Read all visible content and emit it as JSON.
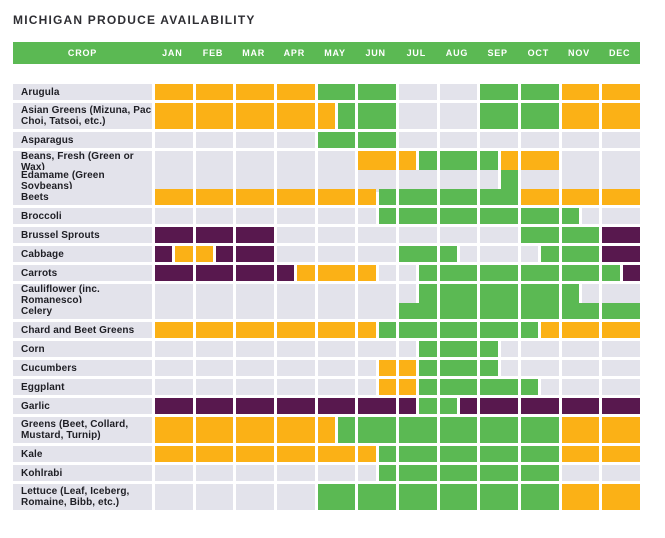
{
  "title": "MICHIGAN PRODUCE AVAILABILITY",
  "header": {
    "crop_label": "CROP"
  },
  "months": [
    "JAN",
    "FEB",
    "MAR",
    "APR",
    "MAY",
    "JUN",
    "JUL",
    "AUG",
    "SEP",
    "OCT",
    "NOV",
    "DEC"
  ],
  "colors": {
    "green": "#5bb953",
    "orange": "#fbb116",
    "purple": "#58184e",
    "none": "#e3e3eb",
    "header_bg": "#5bb953",
    "header_text": "#ffffff",
    "title_text": "#2e2e33",
    "label_bg": "#e3e3eb",
    "label_text": "#1e1e24"
  },
  "cell_codes": {
    "G": "green",
    "O": "orange",
    "P": "purple",
    "-": "none"
  },
  "chart_data": {
    "type": "heatmap",
    "title": "MICHIGAN PRODUCE AVAILABILITY",
    "x_categories": [
      "JAN",
      "FEB",
      "MAR",
      "APR",
      "MAY",
      "JUN",
      "JUL",
      "AUG",
      "SEP",
      "OCT",
      "NOV",
      "DEC"
    ],
    "value_codes": "G=green cell, O=orange cell, P=purple cell, -=empty gray cell, X/Y=month cell split into left/right halves",
    "legend": "none shown in image",
    "rows": [
      {
        "crop": "Arugula",
        "tall": false,
        "months": [
          "O",
          "O",
          "O",
          "O",
          "G",
          "G",
          "-",
          "-",
          "G",
          "G",
          "O",
          "O"
        ]
      },
      {
        "crop": "Asian Greens (Mizuna, Pac Choi, Tatsoi, etc.)",
        "tall": true,
        "months": [
          "O",
          "O",
          "O",
          "O",
          "O/G",
          "G",
          "-",
          "-",
          "G",
          "G",
          "O",
          "O"
        ]
      },
      {
        "crop": "Asparagus",
        "tall": false,
        "months": [
          "-",
          "-",
          "-",
          "-",
          "G",
          "G",
          "-",
          "-",
          "-",
          "-",
          "-",
          "-"
        ]
      },
      {
        "crop": "Beans, Fresh (Green or Wax)",
        "tall": false,
        "months": [
          "-",
          "-",
          "-",
          "-",
          "-",
          "O",
          "O/G",
          "G",
          "G/O",
          "O",
          "-",
          "-"
        ]
      },
      {
        "crop": "Edamame (Green Soybeans)",
        "tall": false,
        "months": [
          "-",
          "-",
          "-",
          "-",
          "-",
          "-",
          "-",
          "-",
          "-/G",
          "-",
          "-",
          "-"
        ]
      },
      {
        "crop": "Beets",
        "tall": false,
        "months": [
          "O",
          "O",
          "O",
          "O",
          "O",
          "O/G",
          "G",
          "G",
          "G",
          "O",
          "O",
          "O"
        ]
      },
      {
        "crop": "Broccoli",
        "tall": false,
        "months": [
          "-",
          "-",
          "-",
          "-",
          "-",
          "-/G",
          "G",
          "G",
          "G",
          "G",
          "G/-",
          "-"
        ]
      },
      {
        "crop": "Brussel Sprouts",
        "tall": false,
        "months": [
          "P",
          "P",
          "P",
          "-",
          "-",
          "-",
          "-",
          "-",
          "-",
          "G",
          "G",
          "P"
        ]
      },
      {
        "crop": "Cabbage",
        "tall": false,
        "months": [
          "P/O",
          "O/P",
          "P",
          "-",
          "-",
          "-",
          "G",
          "G/-",
          "-",
          "-/G",
          "G",
          "P"
        ]
      },
      {
        "crop": "Carrots",
        "tall": false,
        "months": [
          "P",
          "P",
          "P",
          "P/O",
          "O",
          "O/-",
          "-/G",
          "G",
          "G",
          "G",
          "G",
          "G/P"
        ]
      },
      {
        "crop": "Cauliflower (inc. Romanesco)",
        "tall": false,
        "months": [
          "-",
          "-",
          "-",
          "-",
          "-",
          "-",
          "-/G",
          "G",
          "G",
          "G",
          "G/-",
          "-"
        ]
      },
      {
        "crop": "Celery",
        "tall": false,
        "months": [
          "-",
          "-",
          "-",
          "-",
          "-",
          "-",
          "G",
          "G",
          "G",
          "G",
          "G",
          "G"
        ]
      },
      {
        "crop": "Chard and Beet Greens",
        "tall": false,
        "months": [
          "O",
          "O",
          "O",
          "O",
          "O",
          "O/G",
          "G",
          "G",
          "G",
          "G/O",
          "O",
          "O"
        ]
      },
      {
        "crop": "Corn",
        "tall": false,
        "months": [
          "-",
          "-",
          "-",
          "-",
          "-",
          "-",
          "-/G",
          "G",
          "G/-",
          "-",
          "-",
          "-"
        ]
      },
      {
        "crop": "Cucumbers",
        "tall": false,
        "months": [
          "-",
          "-",
          "-",
          "-",
          "-",
          "-/O",
          "O/G",
          "G",
          "G/-",
          "-",
          "-",
          "-"
        ]
      },
      {
        "crop": "Eggplant",
        "tall": false,
        "months": [
          "-",
          "-",
          "-",
          "-",
          "-",
          "-/O",
          "O/G",
          "G",
          "G",
          "G/-",
          "-",
          "-"
        ]
      },
      {
        "crop": "Garlic",
        "tall": false,
        "months": [
          "P",
          "P",
          "P",
          "P",
          "P",
          "P",
          "P/G",
          "G/P",
          "P",
          "P",
          "P",
          "P"
        ]
      },
      {
        "crop": "Greens (Beet, Collard, Mustard, Turnip)",
        "tall": true,
        "months": [
          "O",
          "O",
          "O",
          "O",
          "O/G",
          "G",
          "G",
          "G",
          "G",
          "G",
          "O",
          "O"
        ]
      },
      {
        "crop": "Kale",
        "tall": false,
        "months": [
          "O",
          "O",
          "O",
          "O",
          "O",
          "O/G",
          "G",
          "G",
          "G",
          "G",
          "O",
          "O"
        ]
      },
      {
        "crop": "Kohlrabi",
        "tall": false,
        "months": [
          "-",
          "-",
          "-",
          "-",
          "-",
          "-/G",
          "G",
          "G",
          "G",
          "G",
          "-",
          "-"
        ]
      },
      {
        "crop": "Lettuce (Leaf, Iceberg, Romaine, Bibb, etc.)",
        "tall": true,
        "months": [
          "-",
          "-",
          "-",
          "-",
          "G",
          "G",
          "G",
          "G",
          "G",
          "G",
          "O",
          "O"
        ]
      }
    ]
  }
}
